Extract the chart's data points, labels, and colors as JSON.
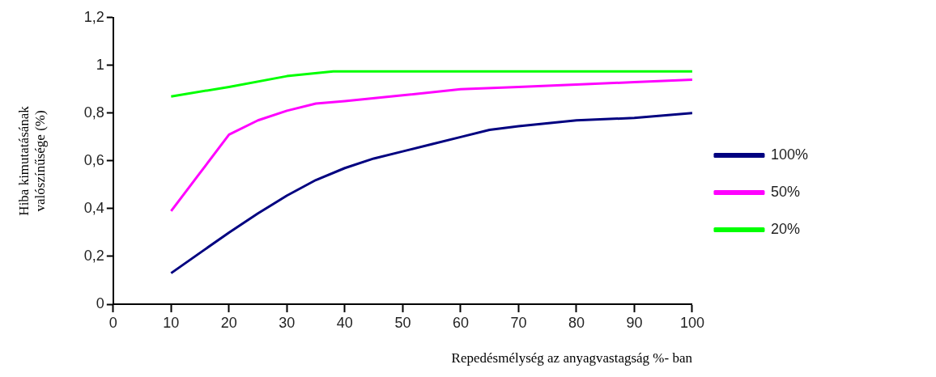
{
  "chart_data": {
    "type": "line",
    "xlabel": "Repedésmélység az anyagvastagság %- ban",
    "ylabel": "Hiba kimutatásának\nvalószínűsége (%)",
    "xlim": [
      0,
      100
    ],
    "xticks": [
      0,
      10,
      20,
      30,
      40,
      50,
      60,
      70,
      80,
      90,
      100
    ],
    "ylim": [
      0,
      1.2
    ],
    "yticks": [
      0,
      {
        "value": 0.2,
        "label": "0,2"
      },
      {
        "value": 0.4,
        "label": "0,4"
      },
      {
        "value": 0.6,
        "label": "0,6"
      },
      {
        "value": 0.8,
        "label": "0,8"
      },
      1,
      {
        "value": 1.2,
        "label": "1,2"
      }
    ],
    "grid": false,
    "legend": "right",
    "marker": "none",
    "line_style": "solid",
    "series": [
      {
        "name": "100%",
        "color": "#000080",
        "x": [
          10,
          20,
          25,
          30,
          35,
          40,
          45,
          50,
          55,
          60,
          65,
          70,
          80,
          90,
          100
        ],
        "values": [
          0.13,
          0.3,
          0.38,
          0.455,
          0.52,
          0.57,
          0.61,
          0.64,
          0.67,
          0.7,
          0.73,
          0.745,
          0.77,
          0.78,
          0.8
        ]
      },
      {
        "name": "50%",
        "color": "#ff00ff",
        "x": [
          10,
          15,
          20,
          25,
          30,
          35,
          40,
          50,
          60,
          70,
          80,
          90,
          100
        ],
        "values": [
          0.39,
          0.55,
          0.71,
          0.77,
          0.81,
          0.84,
          0.85,
          0.875,
          0.9,
          0.91,
          0.92,
          0.93,
          0.94
        ]
      },
      {
        "name": "20%",
        "color": "#00ff00",
        "x": [
          10,
          20,
          30,
          38,
          100
        ],
        "values": [
          0.87,
          0.91,
          0.955,
          0.975,
          0.975
        ]
      }
    ]
  }
}
